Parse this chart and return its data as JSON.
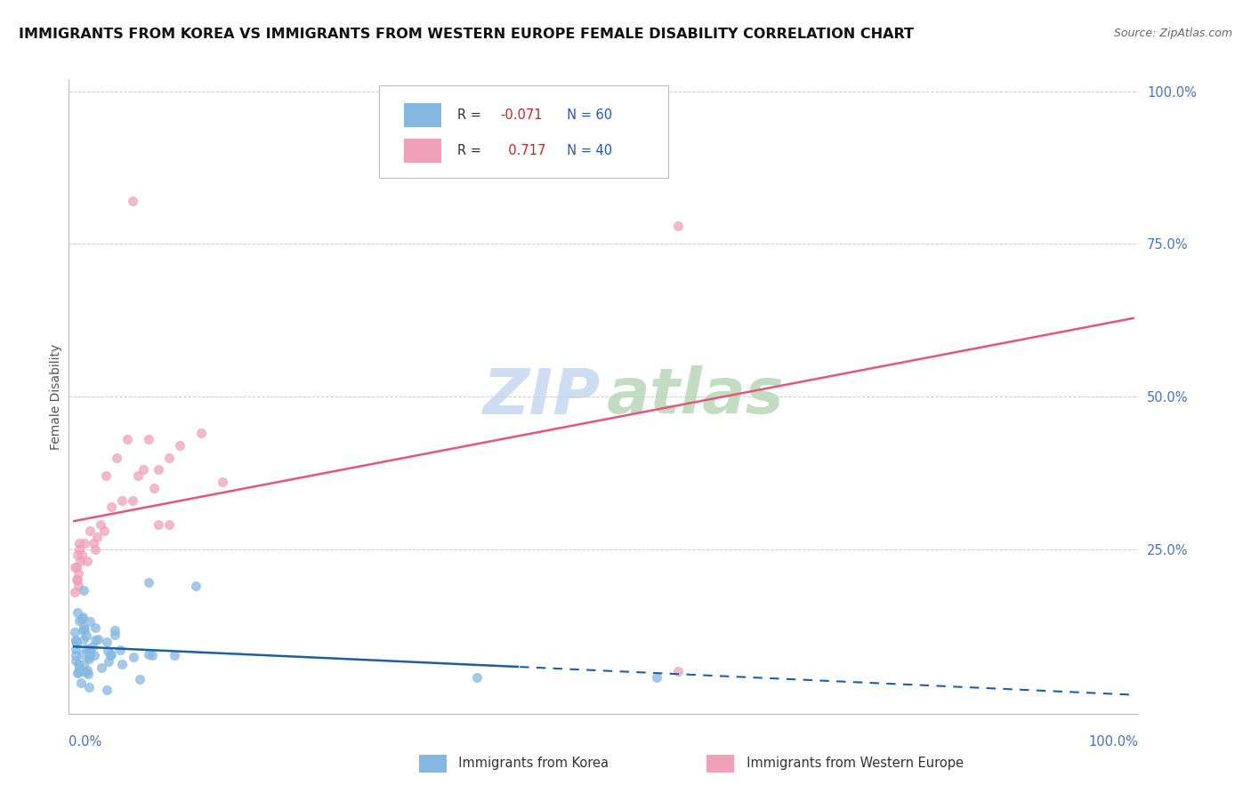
{
  "title": "IMMIGRANTS FROM KOREA VS IMMIGRANTS FROM WESTERN EUROPE FEMALE DISABILITY CORRELATION CHART",
  "source": "Source: ZipAtlas.com",
  "ylabel": "Female Disability",
  "korea_R": -0.071,
  "korea_N": 60,
  "we_R": 0.717,
  "we_N": 40,
  "korea_color": "#85b8e0",
  "we_color": "#f0a0b8",
  "korea_line_color": "#1a5fa8",
  "we_line_color": "#e8547a",
  "background_color": "#ffffff",
  "grid_color": "#cccccc",
  "axis_color": "#bbbbbb",
  "right_tick_color": "#4472c4",
  "title_color": "#111111",
  "source_color": "#666666",
  "watermark_zip_color": "#c5d8f0",
  "watermark_atlas_color": "#b8d8b8",
  "legend_label_color": "#333333",
  "legend_r_color": "#cc2222",
  "legend_n_color": "#2255cc",
  "bottom_legend_color": "#333333"
}
